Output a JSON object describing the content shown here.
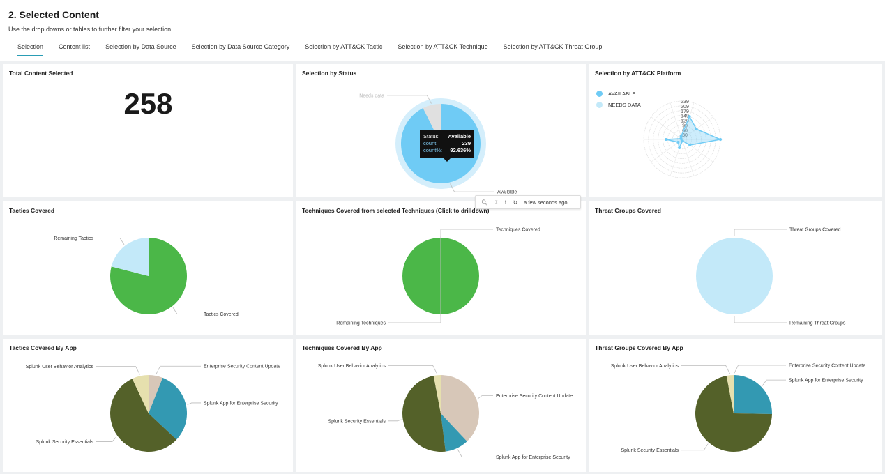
{
  "header": {
    "title": "2. Selected Content",
    "subtitle": "Use the drop downs or tables to further filter your selection.",
    "tabs": [
      {
        "label": "Selection",
        "active": true
      },
      {
        "label": "Content list"
      },
      {
        "label": "Selection by Data Source"
      },
      {
        "label": "Selection by Data Source Category"
      },
      {
        "label": "Selection by ATT&CK Tactic"
      },
      {
        "label": "Selection by ATT&CK Technique"
      },
      {
        "label": "Selection by ATT&CK Threat Group"
      }
    ]
  },
  "colors": {
    "accent": "#2a9db5",
    "available": "#6fcbf5",
    "needs_data": "#e0e0e0",
    "green": "#4bb748",
    "light_blue": "#c3e9f9",
    "escu": "#d7c7b8",
    "app_es": "#3399b2",
    "sse": "#546129",
    "uba": "#e6e0ae"
  },
  "panels": {
    "total": {
      "title": "Total Content Selected",
      "value": "258"
    },
    "status": {
      "title": "Selection by Status",
      "chart_data": {
        "type": "pie",
        "slices": [
          {
            "label": "Available",
            "value": 239,
            "color": "#6fcbf5"
          },
          {
            "label": "Needs data",
            "value": 19,
            "color": "#e0e0e0"
          }
        ]
      },
      "tooltip": {
        "status_key": "Status:",
        "status_val": "Available",
        "count_key": "count:",
        "count_val": "239",
        "pct_key": "count%:",
        "pct_val": "92.636%"
      }
    },
    "platform": {
      "title": "Selection by ATT&CK Platform",
      "legend": [
        {
          "label": "AVAILABLE",
          "color": "#6fcbf5"
        },
        {
          "label": "NEEDS DATA",
          "color": "#c3e9f9"
        }
      ],
      "chart_data": {
        "type": "radar",
        "ticks": [
          "239",
          "209",
          "179",
          "149",
          "120",
          "90",
          "60",
          "30"
        ],
        "max": 239,
        "series": [
          {
            "values": [
              239,
              60,
              10,
              55,
              30,
              100,
              8,
              20,
              150,
              110
            ]
          }
        ]
      }
    },
    "tactics": {
      "title": "Tactics Covered",
      "chart_data": {
        "type": "pie",
        "slices": [
          {
            "label": "Tactics Covered",
            "value": 79,
            "color": "#4bb748"
          },
          {
            "label": "Remaining Tactics",
            "value": 21,
            "color": "#c3e9f9"
          }
        ]
      }
    },
    "techniques": {
      "title": "Techniques Covered from selected Techniques (Click to drilldown)",
      "chart_data": {
        "type": "pie",
        "slices": [
          {
            "label": "Techniques Covered",
            "value": 100,
            "color": "#4bb748"
          },
          {
            "label": "Remaining Techniques",
            "value": 0,
            "color": "#c3e9f9"
          }
        ]
      }
    },
    "groups": {
      "title": "Threat Groups Covered",
      "chart_data": {
        "type": "pie",
        "slices": [
          {
            "label": "Threat Groups Covered",
            "value": 0,
            "color": "#4bb748"
          },
          {
            "label": "Remaining Threat Groups",
            "value": 100,
            "color": "#c3e9f9"
          }
        ]
      }
    },
    "tactics_app": {
      "title": "Tactics Covered By App",
      "chart_data": {
        "type": "pie",
        "slices": [
          {
            "label": "Enterprise Security Content Update",
            "value": 6,
            "color": "#d7c7b8"
          },
          {
            "label": "Splunk App for Enterprise Security",
            "value": 31,
            "color": "#3399b2"
          },
          {
            "label": "Splunk Security Essentials",
            "value": 56,
            "color": "#546129"
          },
          {
            "label": "Splunk User Behavior Analytics",
            "value": 7,
            "color": "#e6e0ae"
          }
        ]
      }
    },
    "techniques_app": {
      "title": "Techniques Covered By App",
      "chart_data": {
        "type": "pie",
        "slices": [
          {
            "label": "Enterprise Security Content Update",
            "value": 38,
            "color": "#d7c7b8"
          },
          {
            "label": "Splunk App for Enterprise Security",
            "value": 10,
            "color": "#3399b2"
          },
          {
            "label": "Splunk Security Essentials",
            "value": 49,
            "color": "#546129"
          },
          {
            "label": "Splunk User Behavior Analytics",
            "value": 3,
            "color": "#e6e0ae"
          }
        ]
      }
    },
    "groups_app": {
      "title": "Threat Groups Covered By App",
      "chart_data": {
        "type": "pie",
        "slices": [
          {
            "label": "Enterprise Security Content Update",
            "value": 0.3,
            "color": "#d7c7b8"
          },
          {
            "label": "Splunk App for Enterprise Security",
            "value": 25,
            "color": "#3399b2"
          },
          {
            "label": "Splunk Security Essentials",
            "value": 71.7,
            "color": "#546129"
          },
          {
            "label": "Splunk User Behavior Analytics",
            "value": 3,
            "color": "#e6e0ae"
          }
        ]
      }
    }
  },
  "toolbar": {
    "icons": [
      "search-icon",
      "download-icon",
      "info-icon",
      "refresh-icon"
    ],
    "updated": "a few seconds ago"
  }
}
